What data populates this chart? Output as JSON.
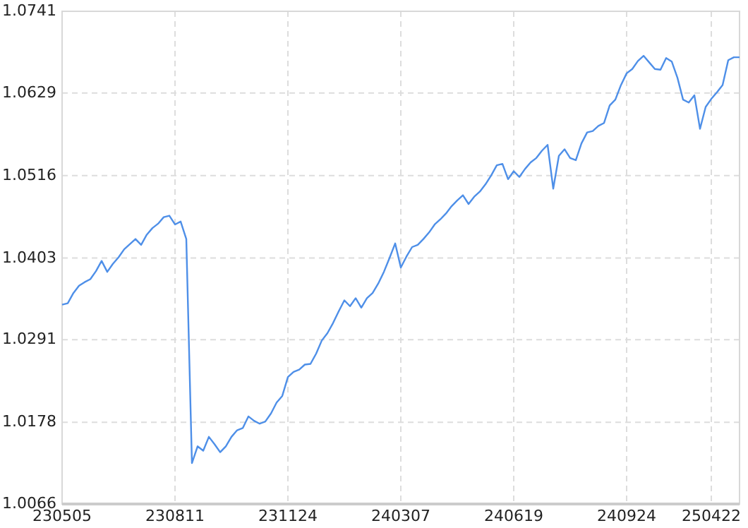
{
  "chart_data": {
    "type": "line",
    "categories": [
      "230505",
      null,
      null,
      null,
      null,
      null,
      null,
      null,
      null,
      null,
      null,
      null,
      null,
      null,
      null,
      null,
      null,
      null,
      null,
      null,
      "230811",
      null,
      null,
      null,
      null,
      null,
      null,
      null,
      null,
      null,
      null,
      null,
      null,
      null,
      null,
      null,
      null,
      null,
      null,
      null,
      "231124",
      null,
      null,
      null,
      null,
      null,
      null,
      null,
      null,
      null,
      null,
      null,
      null,
      null,
      null,
      null,
      null,
      null,
      null,
      null,
      "240307",
      null,
      null,
      null,
      null,
      null,
      null,
      null,
      null,
      null,
      null,
      null,
      null,
      null,
      null,
      null,
      null,
      null,
      null,
      null,
      "240619",
      null,
      null,
      null,
      null,
      null,
      null,
      null,
      null,
      null,
      null,
      null,
      null,
      null,
      null,
      null,
      null,
      null,
      null,
      null,
      "240924",
      null,
      null,
      null,
      null,
      null,
      null,
      null,
      null,
      null,
      null,
      null,
      null,
      null,
      null,
      "250422",
      null,
      null,
      null,
      null,
      null
    ],
    "series": [
      {
        "color": "#4e8fe8",
        "values": [
          1.0339,
          1.0341,
          1.0355,
          1.0365,
          1.037,
          1.0374,
          1.0385,
          1.0399,
          1.0384,
          1.0395,
          1.0404,
          1.0415,
          1.0422,
          1.0429,
          1.0421,
          1.0435,
          1.0444,
          1.045,
          1.0459,
          1.0461,
          1.0449,
          1.0453,
          1.0429,
          1.0122,
          1.0145,
          1.0139,
          1.0158,
          1.0148,
          1.0137,
          1.0145,
          1.0158,
          1.0167,
          1.017,
          1.0186,
          1.018,
          1.0176,
          1.0179,
          1.019,
          1.0205,
          1.0214,
          1.024,
          1.0247,
          1.025,
          1.0257,
          1.0258,
          1.0272,
          1.029,
          1.03,
          1.0314,
          1.033,
          1.0345,
          1.0337,
          1.0348,
          1.0335,
          1.0348,
          1.0355,
          1.0368,
          1.0384,
          1.0403,
          1.0423,
          1.039,
          1.0405,
          1.0418,
          1.0421,
          1.0429,
          1.0438,
          1.0449,
          1.0456,
          1.0464,
          1.0474,
          1.0482,
          1.0489,
          1.0477,
          1.0487,
          1.0494,
          1.0504,
          1.0516,
          1.053,
          1.0532,
          1.0511,
          1.0522,
          1.0514,
          1.0525,
          1.0534,
          1.054,
          1.055,
          1.0558,
          1.0498,
          1.0543,
          1.0552,
          1.054,
          1.0537,
          1.056,
          1.0575,
          1.0577,
          1.0584,
          1.0588,
          1.0612,
          1.062,
          1.064,
          1.0656,
          1.0662,
          1.0673,
          1.068,
          1.0671,
          1.0662,
          1.0661,
          1.0677,
          1.0672,
          1.065,
          1.062,
          1.0616,
          1.0626,
          1.058,
          1.061,
          1.0621,
          1.063,
          1.064,
          1.0674,
          1.0678,
          1.0678
        ]
      }
    ],
    "ylim": [
      1.0066,
      1.0741
    ],
    "yticks": [
      1.0066,
      1.0178,
      1.0291,
      1.0403,
      1.0516,
      1.0629,
      1.0741
    ],
    "grid": true,
    "marker": "none",
    "line_style": "solid"
  }
}
